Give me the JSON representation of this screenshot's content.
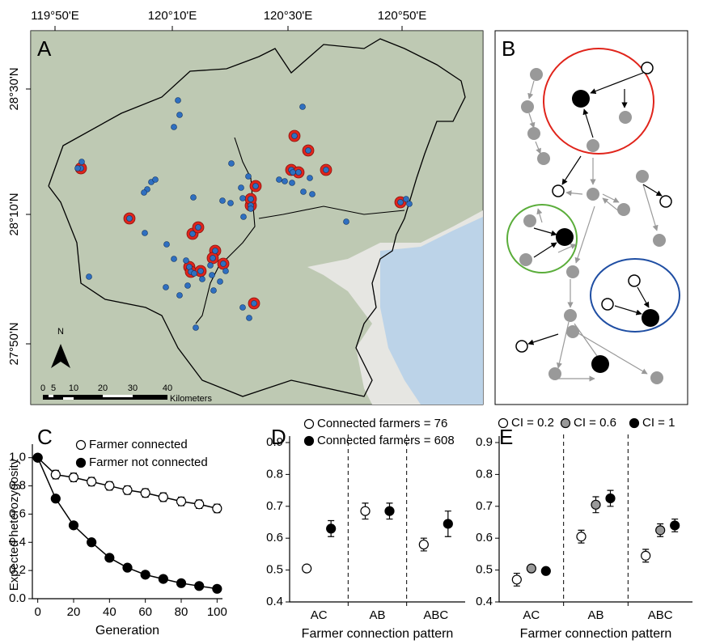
{
  "panel_labels": [
    "A",
    "B",
    "C",
    "D",
    "E"
  ],
  "map": {
    "lon_labels": [
      "119°50'E",
      "120°10'E",
      "120°30'E",
      "120°50'E"
    ],
    "lat_labels": [
      "28°30'N",
      "28°10'N",
      "27°50'N"
    ],
    "north": "N",
    "scale_ticks": [
      0,
      5,
      10,
      20,
      30,
      40
    ],
    "scale_unit": "Kilometers"
  },
  "chart_data": [
    {
      "type": "line",
      "xlabel": "Generation",
      "ylabel": "Expected heterozygosity",
      "x": [
        0,
        10,
        20,
        30,
        40,
        50,
        60,
        70,
        80,
        90,
        100
      ],
      "xlim": [
        -3,
        103
      ],
      "xticks": [
        0,
        20,
        40,
        60,
        80,
        100
      ],
      "ylim": [
        0,
        1.05
      ],
      "yticks": [
        {
          "value": 0,
          "label": "0.0"
        },
        0.2,
        0.4,
        0.6,
        0.8,
        {
          "value": 1,
          "label": "1.0"
        }
      ],
      "series": [
        {
          "name": "Farmer connected",
          "color": "#000000",
          "fill": "#ffffff",
          "values": [
            1.0,
            0.88,
            0.86,
            0.83,
            0.8,
            0.77,
            0.75,
            0.72,
            0.69,
            0.67,
            0.64
          ],
          "errors": [
            0.02,
            0.03,
            0.03,
            0.03,
            0.03,
            0.03,
            0.03,
            0.03,
            0.03,
            0.03,
            0.03
          ]
        },
        {
          "name": "Farmer not connected",
          "color": "#000000",
          "fill": "#000000",
          "values": [
            1.0,
            0.71,
            0.52,
            0.4,
            0.29,
            0.22,
            0.17,
            0.14,
            0.11,
            0.09,
            0.07
          ],
          "errors": [
            0.02,
            0.02,
            0.02,
            0.02,
            0.02,
            0.02,
            0.02,
            0.02,
            0.02,
            0.02,
            0.02
          ]
        }
      ]
    },
    {
      "type": "dot",
      "xlabel": "Farmer connection pattern",
      "categories": [
        "AC",
        "AB",
        "ABC"
      ],
      "ylim": [
        0.4,
        0.9
      ],
      "yticks": [
        0.4,
        0.5,
        0.6,
        0.7,
        0.8,
        0.9
      ],
      "series": [
        {
          "name": "Connected farmers = 76",
          "color": "#000000",
          "fill": "#ffffff",
          "values": [
            0.505,
            0.685,
            0.58
          ],
          "errors": [
            0.01,
            0.025,
            0.02
          ]
        },
        {
          "name": "Connected farmers = 608",
          "color": "#000000",
          "fill": "#000000",
          "values": [
            0.63,
            0.685,
            0.645
          ],
          "errors": [
            0.025,
            0.025,
            0.04
          ]
        }
      ]
    },
    {
      "type": "dot",
      "xlabel": "Farmer connection pattern",
      "categories": [
        "AC",
        "AB",
        "ABC"
      ],
      "ylim": [
        0.4,
        0.9
      ],
      "yticks": [
        0.4,
        0.5,
        0.6,
        0.7,
        0.8,
        0.9
      ],
      "series": [
        {
          "name": "CI = 0.2",
          "color": "#000000",
          "fill": "#ffffff",
          "values": [
            0.47,
            0.605,
            0.545
          ],
          "errors": [
            0.02,
            0.02,
            0.02
          ]
        },
        {
          "name": "CI = 0.6",
          "color": "#000000",
          "fill": "#999999",
          "values": [
            0.505,
            0.705,
            0.625
          ],
          "errors": [
            0.01,
            0.025,
            0.02
          ]
        },
        {
          "name": "CI = 1",
          "color": "#000000",
          "fill": "#000000",
          "values": [
            0.497,
            0.725,
            0.64
          ],
          "errors": [
            0.01,
            0.025,
            0.02
          ]
        }
      ]
    }
  ]
}
